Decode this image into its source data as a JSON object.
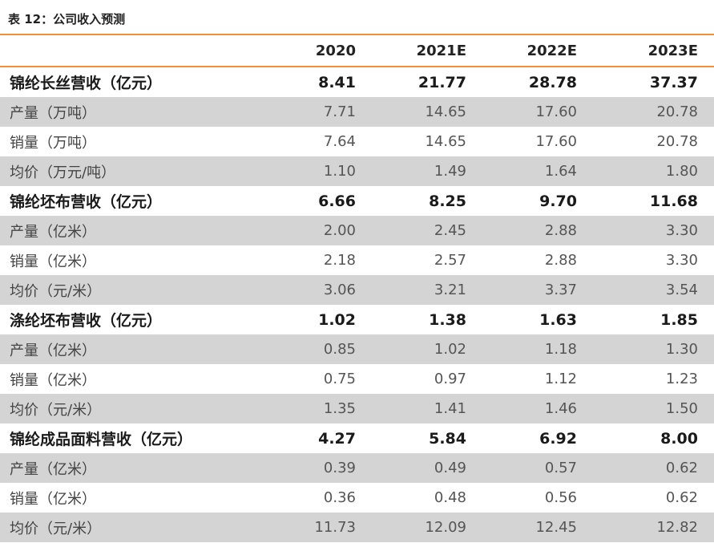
{
  "title": "表 12：公司收入预测",
  "columns": [
    "",
    "2020",
    "2021E",
    "2022E",
    "2023E"
  ],
  "rows": [
    {
      "label": "锦纶长丝营收（亿元）",
      "values": [
        "8.41",
        "21.77",
        "28.78",
        "37.37"
      ],
      "bold": true
    },
    {
      "label": "产量（万吨）",
      "values": [
        "7.71",
        "14.65",
        "17.60",
        "20.78"
      ],
      "bold": false
    },
    {
      "label": "销量（万吨）",
      "values": [
        "7.64",
        "14.65",
        "17.60",
        "20.78"
      ],
      "bold": false
    },
    {
      "label": "均价（万元/吨）",
      "values": [
        "1.10",
        "1.49",
        "1.64",
        "1.80"
      ],
      "bold": false
    },
    {
      "label": "锦纶坯布营收（亿元）",
      "values": [
        "6.66",
        "8.25",
        "9.70",
        "11.68"
      ],
      "bold": true
    },
    {
      "label": "产量（亿米）",
      "values": [
        "2.00",
        "2.45",
        "2.88",
        "3.30"
      ],
      "bold": false
    },
    {
      "label": "销量（亿米）",
      "values": [
        "2.18",
        "2.57",
        "2.88",
        "3.30"
      ],
      "bold": false
    },
    {
      "label": "均价（元/米）",
      "values": [
        "3.06",
        "3.21",
        "3.37",
        "3.54"
      ],
      "bold": false
    },
    {
      "label": "涤纶坯布营收（亿元）",
      "values": [
        "1.02",
        "1.38",
        "1.63",
        "1.85"
      ],
      "bold": true
    },
    {
      "label": "产量（亿米）",
      "values": [
        "0.85",
        "1.02",
        "1.18",
        "1.30"
      ],
      "bold": false
    },
    {
      "label": "销量（亿米）",
      "values": [
        "0.75",
        "0.97",
        "1.12",
        "1.23"
      ],
      "bold": false
    },
    {
      "label": "均价（元/米）",
      "values": [
        "1.35",
        "1.41",
        "1.46",
        "1.50"
      ],
      "bold": false
    },
    {
      "label": "锦纶成品面料营收（亿元）",
      "values": [
        "4.27",
        "5.84",
        "6.92",
        "8.00"
      ],
      "bold": true
    },
    {
      "label": "产量（亿米）",
      "values": [
        "0.39",
        "0.49",
        "0.57",
        "0.62"
      ],
      "bold": false
    },
    {
      "label": "销量（亿米）",
      "values": [
        "0.36",
        "0.48",
        "0.56",
        "0.62"
      ],
      "bold": false
    },
    {
      "label": "均价（元/米）",
      "values": [
        "11.73",
        "12.09",
        "12.45",
        "12.82"
      ],
      "bold": false
    }
  ],
  "colors": {
    "accent": "#f0913a",
    "shade": "#d4d4d4"
  }
}
